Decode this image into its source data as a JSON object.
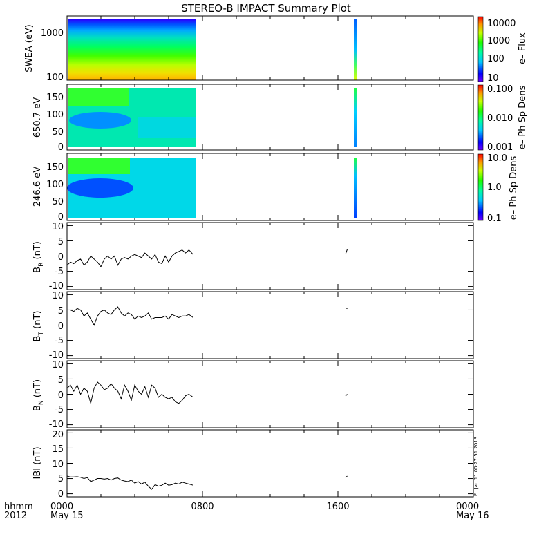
{
  "title": "STEREO-B IMPACT Summary Plot",
  "corner_labels": {
    "time_format": "hhmm",
    "year": "2012"
  },
  "x_axis": {
    "range_hours": [
      0,
      24
    ],
    "ticks": [
      {
        "hour": 0,
        "time": "0000",
        "date": "May 15"
      },
      {
        "hour": 8,
        "time": "0800",
        "date": ""
      },
      {
        "hour": 16,
        "time": "1600",
        "date": ""
      },
      {
        "hour": 24,
        "time": "0000",
        "date": "May 16"
      }
    ]
  },
  "timestamp": "Fri Jan 11 00:27:51 2013",
  "colors": {
    "line": "#000000",
    "background": "#ffffff",
    "frame": "#000000"
  },
  "data_coverage": {
    "gaps": [
      [
        7.45,
        16.45
      ],
      [
        16.55,
        24
      ]
    ],
    "segments": [
      [
        0,
        7.45
      ],
      [
        16.45,
        16.55
      ]
    ]
  },
  "colorbars": [
    {
      "panel": "swea",
      "label": "e– Flux",
      "scale": "log",
      "range": [
        5,
        20000
      ],
      "ticks": [
        "10000",
        "1000",
        "100",
        "10"
      ]
    },
    {
      "panel": "pad650",
      "label": "e– Ph Sp Dens",
      "scale": "log",
      "range": [
        0.001,
        0.1
      ],
      "ticks": [
        "0.100",
        "0.010",
        "0.001"
      ]
    },
    {
      "panel": "pad246",
      "label": "e– Ph Sp Dens",
      "scale": "log",
      "range": [
        0.1,
        10
      ],
      "ticks": [
        "10.0",
        "1.0",
        "0.1"
      ]
    }
  ],
  "chart_data": [
    {
      "type": "heatmap",
      "id": "swea",
      "ylabel": "SWEA (eV)",
      "yscale": "log",
      "ylim": [
        90,
        2000
      ],
      "yticks": [
        "1000",
        "100"
      ],
      "zlabel": "e– Flux",
      "description_values": "energy spectrogram; flux ~5000-10000 near 100 eV, ~100 at 1000 eV, ~10 near 2000 eV"
    },
    {
      "type": "heatmap",
      "id": "pad650",
      "ylabel": "650.7 eV",
      "ylim": [
        -10,
        180
      ],
      "yticks": [
        "150",
        "100",
        "50",
        "0"
      ],
      "zlabel": "e– Ph Sp Dens"
    },
    {
      "type": "heatmap",
      "id": "pad246",
      "ylabel": "246.6 eV",
      "ylim": [
        -10,
        180
      ],
      "yticks": [
        "150",
        "100",
        "50",
        "0"
      ],
      "zlabel": "e– Ph Sp Dens"
    },
    {
      "type": "line",
      "id": "br",
      "ylabel_main": "B",
      "ylabel_sub": "R",
      "ylabel_unit": " (nT)",
      "ylim": [
        -11,
        11
      ],
      "yticks": [
        "10",
        "5",
        "0",
        "-5",
        "-10"
      ],
      "x": [
        0,
        0.2,
        0.4,
        0.6,
        0.8,
        1.0,
        1.2,
        1.4,
        1.6,
        1.8,
        2.0,
        2.2,
        2.4,
        2.6,
        2.8,
        3.0,
        3.2,
        3.4,
        3.6,
        3.8,
        4.0,
        4.2,
        4.4,
        4.6,
        4.8,
        5.0,
        5.2,
        5.4,
        5.6,
        5.8,
        6.0,
        6.2,
        6.4,
        6.6,
        6.8,
        7.0,
        7.2,
        7.45
      ],
      "y": [
        -3,
        -2,
        -2.5,
        -1.5,
        -1,
        -3,
        -2,
        0,
        -1,
        -2,
        -3.5,
        -1,
        0,
        -1,
        0,
        -3,
        -1,
        -0.5,
        -1,
        0,
        0.5,
        0,
        -0.5,
        1,
        0,
        -1,
        0.5,
        -2,
        -2.5,
        0,
        -2,
        0,
        1,
        1.5,
        2,
        1,
        2,
        0.5
      ],
      "seg2_x": [
        16.45,
        16.55
      ],
      "seg2_y": [
        0.6,
        2.2
      ]
    },
    {
      "type": "line",
      "id": "bt",
      "ylabel_main": "B",
      "ylabel_sub": "T",
      "ylabel_unit": " (nT)",
      "ylim": [
        -11,
        11
      ],
      "yticks": [
        "10",
        "5",
        "0",
        "-5",
        "-10"
      ],
      "x": [
        0,
        0.2,
        0.4,
        0.6,
        0.8,
        1.0,
        1.2,
        1.4,
        1.6,
        1.8,
        2.0,
        2.2,
        2.4,
        2.6,
        2.8,
        3.0,
        3.2,
        3.4,
        3.6,
        3.8,
        4.0,
        4.2,
        4.4,
        4.6,
        4.8,
        5.0,
        5.2,
        5.4,
        5.6,
        5.8,
        6.0,
        6.2,
        6.4,
        6.6,
        6.8,
        7.0,
        7.2,
        7.45
      ],
      "y": [
        5,
        5,
        4.5,
        5.5,
        5,
        3,
        4,
        2,
        0,
        3,
        4.5,
        5,
        4,
        3.5,
        5,
        6,
        4,
        3,
        4,
        3.5,
        2,
        3,
        2.5,
        3,
        4,
        2,
        2.5,
        2.5,
        2.5,
        3,
        2,
        3.5,
        3,
        2.5,
        3,
        3,
        3.5,
        2.5
      ],
      "seg2_x": [
        16.45,
        16.55
      ],
      "seg2_y": [
        5.8,
        5.4
      ]
    },
    {
      "type": "line",
      "id": "bn",
      "ylabel_main": "B",
      "ylabel_sub": "N",
      "ylabel_unit": " (nT)",
      "ylim": [
        -11,
        11
      ],
      "yticks": [
        "10",
        "5",
        "0",
        "-5",
        "-10"
      ],
      "x": [
        0,
        0.2,
        0.4,
        0.6,
        0.8,
        1.0,
        1.2,
        1.4,
        1.6,
        1.8,
        2.0,
        2.2,
        2.4,
        2.6,
        2.8,
        3.0,
        3.2,
        3.4,
        3.6,
        3.8,
        4.0,
        4.2,
        4.4,
        4.6,
        4.8,
        5.0,
        5.2,
        5.4,
        5.6,
        5.8,
        6.0,
        6.2,
        6.4,
        6.6,
        6.8,
        7.0,
        7.2,
        7.45
      ],
      "y": [
        2,
        3,
        1,
        3,
        0,
        2,
        1,
        -3,
        2,
        4,
        3,
        1.5,
        2,
        3.5,
        2,
        1,
        -1.5,
        3,
        1,
        -2,
        3,
        1,
        0,
        2.5,
        -1,
        3,
        2,
        -1,
        0,
        -1,
        -1.5,
        -1,
        -2.5,
        -3,
        -2,
        -0.5,
        0,
        -1
      ],
      "seg2_x": [
        16.45,
        16.55
      ],
      "seg2_y": [
        -0.6,
        0
      ]
    },
    {
      "type": "line",
      "id": "bmag",
      "ylabel_main": "IBI (nT)",
      "ylim": [
        -1,
        21
      ],
      "yticks": [
        "20",
        "15",
        "10",
        "5",
        "0"
      ],
      "x": [
        0,
        0.2,
        0.4,
        0.6,
        0.8,
        1.0,
        1.2,
        1.4,
        1.6,
        1.8,
        2.0,
        2.2,
        2.4,
        2.6,
        2.8,
        3.0,
        3.2,
        3.4,
        3.6,
        3.8,
        4.0,
        4.2,
        4.4,
        4.6,
        4.8,
        5.0,
        5.2,
        5.4,
        5.6,
        5.8,
        6.0,
        6.2,
        6.4,
        6.6,
        6.8,
        7.0,
        7.2,
        7.45
      ],
      "y": [
        5.8,
        5.5,
        5.5,
        5.6,
        5.4,
        5,
        5.3,
        4,
        4.5,
        5,
        5,
        4.8,
        5,
        4.5,
        5,
        5.2,
        4.5,
        4.2,
        4,
        4.5,
        3.5,
        4,
        3.2,
        3.8,
        2.5,
        1.5,
        3,
        2.5,
        2.8,
        3.5,
        2.8,
        3,
        3.5,
        3.2,
        3.8,
        3.5,
        3.2,
        2.8
      ],
      "seg2_x": [
        16.45,
        16.55
      ],
      "seg2_y": [
        5.3,
        5.8
      ]
    }
  ]
}
